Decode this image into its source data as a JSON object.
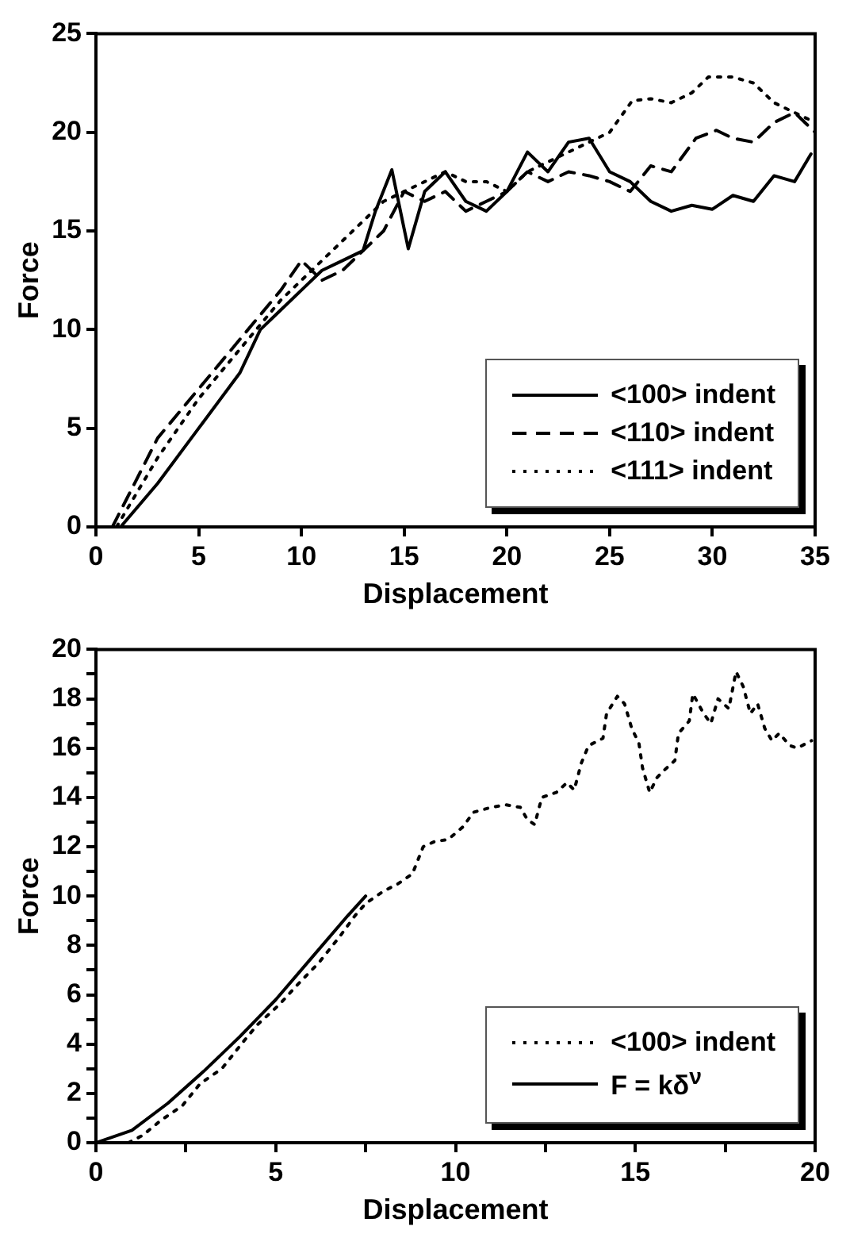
{
  "chart_data": [
    {
      "type": "line",
      "xlabel": "Displacement",
      "ylabel": "Force",
      "xlim": [
        0,
        35
      ],
      "ylim": [
        0,
        25
      ],
      "xticks": [
        0,
        5,
        10,
        15,
        20,
        25,
        30,
        35
      ],
      "yticks": [
        0,
        5,
        10,
        15,
        20,
        25
      ],
      "grid": false,
      "legend": "bottom right",
      "marker": "none",
      "series": [
        {
          "name": "<100> indent",
          "color": "#000000",
          "line_style": "solid",
          "x": [
            1.2,
            3,
            5,
            7,
            8,
            9,
            10,
            11,
            12,
            13,
            13.6,
            14.4,
            15.2,
            16,
            17,
            18,
            19,
            20,
            21,
            22,
            23,
            24,
            25,
            26,
            27,
            28,
            29,
            30,
            31,
            32,
            33,
            34,
            34.8
          ],
          "values": [
            0,
            2.2,
            5,
            7.8,
            10,
            11,
            12,
            13,
            13.5,
            14,
            16,
            18.1,
            14.1,
            17,
            18,
            16.5,
            16,
            17,
            19,
            18,
            19.5,
            19.7,
            18,
            17.5,
            16.5,
            16,
            16.3,
            16.1,
            16.8,
            16.5,
            17.8,
            17.5,
            18.9
          ]
        },
        {
          "name": "<110> indent",
          "color": "#000000",
          "line_style": "dashed",
          "x": [
            0.8,
            3,
            5,
            7,
            9,
            10,
            11,
            12,
            13,
            14,
            15,
            16,
            17,
            18,
            19,
            20,
            21,
            22,
            23,
            24,
            25,
            26,
            27,
            28,
            29.2,
            30.2,
            31,
            32,
            33,
            34,
            35
          ],
          "values": [
            0,
            4.5,
            7,
            9.5,
            12,
            13.5,
            12.5,
            13,
            14,
            15,
            17,
            16.5,
            17,
            16,
            16.5,
            17,
            18,
            17.5,
            18,
            17.8,
            17.5,
            17,
            18.3,
            18,
            19.7,
            20.1,
            19.7,
            19.5,
            20.5,
            21,
            20
          ]
        },
        {
          "name": "<111> indent",
          "color": "#000000",
          "line_style": "dotted",
          "x": [
            1,
            3,
            5,
            7,
            9,
            10,
            11,
            12,
            13,
            14,
            15,
            16,
            17,
            18,
            19,
            20,
            21,
            22,
            23,
            24,
            25,
            26.1,
            27,
            28,
            29,
            29.8,
            31,
            32,
            33,
            34,
            35
          ],
          "values": [
            0,
            3.5,
            6.5,
            9,
            11.5,
            12.5,
            13.5,
            14.5,
            15.5,
            16.5,
            17,
            17.5,
            18,
            17.5,
            17.5,
            17,
            18,
            18.5,
            19,
            19.5,
            20,
            21.6,
            21.7,
            21.5,
            22,
            22.8,
            22.8,
            22.5,
            21.5,
            21,
            20.5
          ]
        }
      ]
    },
    {
      "type": "line",
      "xlabel": "Displacement",
      "ylabel": "Force",
      "xlim": [
        0,
        20
      ],
      "ylim": [
        0,
        20
      ],
      "xticks": [
        0,
        {
          "value": 2.5,
          "label": null
        },
        5,
        {
          "value": 7.5,
          "label": null
        },
        10,
        {
          "value": 12.5,
          "label": null
        },
        15,
        {
          "value": 17.5,
          "label": null
        },
        20
      ],
      "yticks": [
        0,
        {
          "value": 1,
          "label": null
        },
        2,
        {
          "value": 3,
          "label": null
        },
        4,
        {
          "value": 5,
          "label": null
        },
        6,
        {
          "value": 7,
          "label": null
        },
        8,
        {
          "value": 9,
          "label": null
        },
        10,
        {
          "value": 11,
          "label": null
        },
        12,
        {
          "value": 13,
          "label": null
        },
        14,
        {
          "value": 15,
          "label": null
        },
        16,
        {
          "value": 17,
          "label": null
        },
        18,
        {
          "value": 19,
          "label": null
        },
        20
      ],
      "grid": false,
      "legend": "bottom right",
      "marker": "none",
      "series": [
        {
          "name": "<100> indent",
          "color": "#000000",
          "line_style": "dotted",
          "x": [
            0.9,
            1.3,
            1.8,
            2.4,
            2.9,
            3.5,
            4.1,
            4.5,
            5.1,
            5.6,
            6.2,
            6.8,
            7.2,
            7.5,
            8.0,
            8.4,
            8.8,
            9.1,
            9.4,
            9.8,
            10.2,
            10.5,
            11.0,
            11.4,
            11.8,
            12.0,
            12.2,
            12.4,
            12.8,
            13.1,
            13.3,
            13.5,
            13.7,
            14.1,
            14.2,
            14.5,
            14.7,
            14.9,
            15.1,
            15.2,
            15.4,
            15.6,
            15.8,
            16.1,
            16.2,
            16.5,
            16.6,
            16.9,
            17.1,
            17.3,
            17.6,
            17.8,
            18.0,
            18.2,
            18.4,
            18.6,
            18.8,
            19.0,
            19.3,
            19.5,
            19.9
          ],
          "values": [
            0,
            0.3,
            0.9,
            1.5,
            2.4,
            3.0,
            4.1,
            4.8,
            5.6,
            6.4,
            7.3,
            8.4,
            9.2,
            9.7,
            10.2,
            10.5,
            10.9,
            12.0,
            12.2,
            12.3,
            12.8,
            13.4,
            13.6,
            13.7,
            13.6,
            13.1,
            12.9,
            14.0,
            14.2,
            14.6,
            14.3,
            15.4,
            16.1,
            16.4,
            17.4,
            18.1,
            17.8,
            16.8,
            16.2,
            15.2,
            14.2,
            14.8,
            15.1,
            15.5,
            16.6,
            17.1,
            18.2,
            17.4,
            17.0,
            18.0,
            17.6,
            19.1,
            18.5,
            17.4,
            17.8,
            16.8,
            16.3,
            16.6,
            16.1,
            16.0,
            16.3
          ]
        },
        {
          "name": "F = kδ$^{ν}$",
          "color": "#000000",
          "line_style": "solid",
          "x": [
            0,
            1,
            2,
            3,
            4,
            5,
            6,
            7,
            7.5
          ],
          "values": [
            0,
            0.5,
            1.6,
            2.9,
            4.3,
            5.8,
            7.5,
            9.2,
            10
          ]
        }
      ]
    }
  ]
}
